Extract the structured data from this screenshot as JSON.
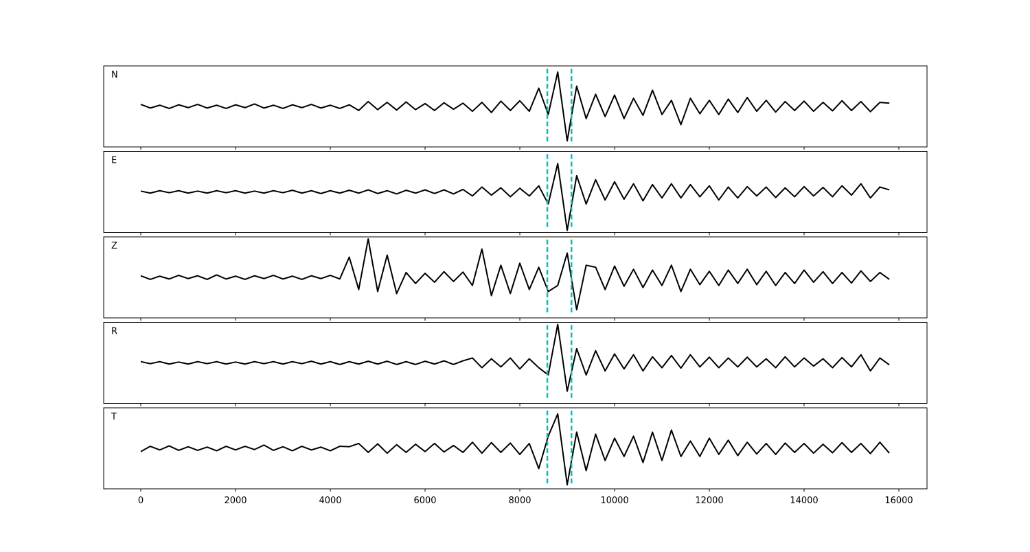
{
  "chart_data": [
    {
      "type": "line",
      "label": "N",
      "color": "#000000",
      "xlim": [
        -783,
        16594
      ],
      "ylim": [
        -1,
        1
      ],
      "xticks": [
        0,
        2000,
        4000,
        6000,
        8000,
        10000,
        12000,
        14000,
        16000
      ],
      "vlines": [
        8580,
        9090
      ],
      "vline_color": "#00bfbf",
      "x": [
        0,
        200,
        400,
        600,
        800,
        1000,
        1200,
        1400,
        1600,
        1800,
        2000,
        2200,
        2400,
        2600,
        2800,
        3000,
        3200,
        3400,
        3600,
        3800,
        4000,
        4200,
        4400,
        4600,
        4800,
        5000,
        5200,
        5400,
        5600,
        5800,
        6000,
        6200,
        6400,
        6600,
        6800,
        7000,
        7200,
        7400,
        7600,
        7800,
        8000,
        8200,
        8400,
        8600,
        8800,
        9000,
        9200,
        9400,
        9600,
        9800,
        10000,
        10200,
        10400,
        10600,
        10800,
        11000,
        11200,
        11400,
        11600,
        11800,
        12000,
        12200,
        12400,
        12600,
        12800,
        13000,
        13200,
        13400,
        13600,
        13800,
        14000,
        14200,
        14400,
        14600,
        14800,
        15000,
        15200,
        15400,
        15600,
        15800
      ],
      "values": [
        0.05,
        -0.04,
        0.03,
        -0.05,
        0.04,
        -0.03,
        0.05,
        -0.04,
        0.03,
        -0.05,
        0.04,
        -0.03,
        0.06,
        -0.04,
        0.03,
        -0.05,
        0.04,
        -0.03,
        0.05,
        -0.04,
        0.03,
        -0.05,
        0.04,
        -0.1,
        0.12,
        -0.08,
        0.1,
        -0.09,
        0.11,
        -0.08,
        0.07,
        -0.1,
        0.09,
        -0.07,
        0.08,
        -0.12,
        0.1,
        -0.15,
        0.13,
        -0.1,
        0.14,
        -0.12,
        0.45,
        -0.2,
        0.85,
        -0.85,
        0.5,
        -0.3,
        0.3,
        -0.25,
        0.28,
        -0.3,
        0.2,
        -0.22,
        0.4,
        -0.2,
        0.15,
        -0.45,
        0.2,
        -0.18,
        0.15,
        -0.2,
        0.18,
        -0.15,
        0.22,
        -0.12,
        0.15,
        -0.14,
        0.12,
        -0.1,
        0.13,
        -0.12,
        0.1,
        -0.11,
        0.14,
        -0.1,
        0.12,
        -0.13,
        0.1,
        0.08
      ]
    },
    {
      "type": "line",
      "label": "E",
      "color": "#000000",
      "xlim": [
        -783,
        16594
      ],
      "ylim": [
        -1,
        1
      ],
      "xticks": [
        0,
        2000,
        4000,
        6000,
        8000,
        10000,
        12000,
        14000,
        16000
      ],
      "vlines": [
        8580,
        9090
      ],
      "vline_color": "#00bfbf",
      "x": [
        0,
        200,
        400,
        600,
        800,
        1000,
        1200,
        1400,
        1600,
        1800,
        2000,
        2200,
        2400,
        2600,
        2800,
        3000,
        3200,
        3400,
        3600,
        3800,
        4000,
        4200,
        4400,
        4600,
        4800,
        5000,
        5200,
        5400,
        5600,
        5800,
        6000,
        6200,
        6400,
        6600,
        6800,
        7000,
        7200,
        7400,
        7600,
        7800,
        8000,
        8200,
        8400,
        8600,
        8800,
        9000,
        9200,
        9400,
        9600,
        9800,
        10000,
        10200,
        10400,
        10600,
        10800,
        11000,
        11200,
        11400,
        11600,
        11800,
        12000,
        12200,
        12400,
        12600,
        12800,
        13000,
        13200,
        13400,
        13600,
        13800,
        14000,
        14200,
        14400,
        14600,
        14800,
        15000,
        15200,
        15400,
        15600,
        15800
      ],
      "values": [
        0.02,
        -0.03,
        0.03,
        -0.02,
        0.03,
        -0.03,
        0.02,
        -0.03,
        0.03,
        -0.02,
        0.03,
        -0.03,
        0.02,
        -0.03,
        0.03,
        -0.02,
        0.04,
        -0.03,
        0.03,
        -0.04,
        0.03,
        -0.03,
        0.04,
        -0.03,
        0.05,
        -0.04,
        0.03,
        -0.05,
        0.04,
        -0.03,
        0.05,
        -0.04,
        0.05,
        -0.05,
        0.06,
        -0.1,
        0.12,
        -0.08,
        0.1,
        -0.12,
        0.09,
        -0.1,
        0.15,
        -0.3,
        0.7,
        -0.95,
        0.4,
        -0.3,
        0.3,
        -0.2,
        0.25,
        -0.18,
        0.2,
        -0.22,
        0.18,
        -0.15,
        0.2,
        -0.15,
        0.18,
        -0.12,
        0.15,
        -0.2,
        0.12,
        -0.15,
        0.13,
        -0.1,
        0.12,
        -0.14,
        0.1,
        -0.12,
        0.13,
        -0.1,
        0.11,
        -0.12,
        0.15,
        -0.08,
        0.2,
        -0.15,
        0.12,
        0.05
      ]
    },
    {
      "type": "line",
      "label": "Z",
      "color": "#000000",
      "xlim": [
        -783,
        16594
      ],
      "ylim": [
        -1,
        1
      ],
      "xticks": [
        0,
        2000,
        4000,
        6000,
        8000,
        10000,
        12000,
        14000,
        16000
      ],
      "vlines": [
        8580,
        9090
      ],
      "vline_color": "#00bfbf",
      "x": [
        0,
        200,
        400,
        600,
        800,
        1000,
        1200,
        1400,
        1600,
        1800,
        2000,
        2200,
        2400,
        2600,
        2800,
        3000,
        3200,
        3400,
        3600,
        3800,
        4000,
        4200,
        4400,
        4600,
        4800,
        5000,
        5200,
        5400,
        5600,
        5800,
        6000,
        6200,
        6400,
        6600,
        6800,
        7000,
        7200,
        7400,
        7600,
        7800,
        8000,
        8200,
        8400,
        8600,
        8800,
        9000,
        9200,
        9400,
        9600,
        9800,
        10000,
        10200,
        10400,
        10600,
        10800,
        11000,
        11200,
        11400,
        11600,
        11800,
        12000,
        12200,
        12400,
        12600,
        12800,
        13000,
        13200,
        13400,
        13600,
        13800,
        14000,
        14200,
        14400,
        14600,
        14800,
        15000,
        15200,
        15400,
        15600,
        15800
      ],
      "values": [
        0.04,
        -0.05,
        0.03,
        -0.04,
        0.05,
        -0.03,
        0.04,
        -0.05,
        0.06,
        -0.04,
        0.03,
        -0.05,
        0.04,
        -0.03,
        0.05,
        -0.04,
        0.03,
        -0.05,
        0.04,
        -0.03,
        0.05,
        -0.04,
        0.5,
        -0.3,
        0.95,
        -0.35,
        0.55,
        -0.4,
        0.12,
        -0.15,
        0.1,
        -0.12,
        0.14,
        -0.1,
        0.13,
        -0.2,
        0.7,
        -0.45,
        0.3,
        -0.4,
        0.35,
        -0.3,
        0.25,
        -0.35,
        -0.2,
        0.6,
        -0.8,
        0.3,
        0.25,
        -0.3,
        0.28,
        -0.22,
        0.2,
        -0.25,
        0.18,
        -0.2,
        0.3,
        -0.35,
        0.2,
        -0.18,
        0.15,
        -0.2,
        0.18,
        -0.15,
        0.2,
        -0.18,
        0.15,
        -0.2,
        0.12,
        -0.15,
        0.18,
        -0.12,
        0.14,
        -0.15,
        0.12,
        -0.14,
        0.16,
        -0.1,
        0.12,
        -0.05
      ]
    },
    {
      "type": "line",
      "label": "R",
      "color": "#000000",
      "xlim": [
        -783,
        16594
      ],
      "ylim": [
        -1,
        1
      ],
      "xticks": [
        0,
        2000,
        4000,
        6000,
        8000,
        10000,
        12000,
        14000,
        16000
      ],
      "vlines": [
        8580,
        9090
      ],
      "vline_color": "#00bfbf",
      "x": [
        0,
        200,
        400,
        600,
        800,
        1000,
        1200,
        1400,
        1600,
        1800,
        2000,
        2200,
        2400,
        2600,
        2800,
        3000,
        3200,
        3400,
        3600,
        3800,
        4000,
        4200,
        4400,
        4600,
        4800,
        5000,
        5200,
        5400,
        5600,
        5800,
        6000,
        6200,
        6400,
        6600,
        6800,
        7000,
        7200,
        7400,
        7600,
        7800,
        8000,
        8200,
        8400,
        8600,
        8800,
        9000,
        9200,
        9400,
        9600,
        9800,
        10000,
        10200,
        10400,
        10600,
        10800,
        11000,
        11200,
        11400,
        11600,
        11800,
        12000,
        12200,
        12400,
        12600,
        12800,
        13000,
        13200,
        13400,
        13600,
        13800,
        14000,
        14200,
        14400,
        14600,
        14800,
        15000,
        15200,
        15400,
        15600,
        15800
      ],
      "values": [
        0.03,
        -0.02,
        0.03,
        -0.03,
        0.02,
        -0.03,
        0.03,
        -0.02,
        0.03,
        -0.03,
        0.02,
        -0.03,
        0.03,
        -0.02,
        0.03,
        -0.03,
        0.03,
        -0.02,
        0.04,
        -0.03,
        0.03,
        -0.04,
        0.03,
        -0.03,
        0.04,
        -0.03,
        0.04,
        -0.04,
        0.03,
        -0.04,
        0.04,
        -0.03,
        0.05,
        -0.04,
        0.05,
        0.12,
        -0.12,
        0.1,
        -0.1,
        0.12,
        -0.15,
        0.1,
        -0.12,
        -0.3,
        0.95,
        -0.7,
        0.35,
        -0.3,
        0.3,
        -0.2,
        0.22,
        -0.15,
        0.2,
        -0.2,
        0.15,
        -0.12,
        0.18,
        -0.13,
        0.2,
        -0.1,
        0.14,
        -0.12,
        0.12,
        -0.1,
        0.14,
        -0.1,
        0.1,
        -0.12,
        0.15,
        -0.1,
        0.12,
        -0.08,
        0.1,
        -0.12,
        0.13,
        -0.1,
        0.2,
        -0.2,
        0.12,
        -0.05
      ]
    },
    {
      "type": "line",
      "label": "T",
      "color": "#000000",
      "xlim": [
        -783,
        16594
      ],
      "ylim": [
        -1,
        1
      ],
      "xticks": [
        0,
        2000,
        4000,
        6000,
        8000,
        10000,
        12000,
        14000,
        16000
      ],
      "vlines": [
        8580,
        9090
      ],
      "vline_color": "#00bfbf",
      "x": [
        0,
        200,
        400,
        600,
        800,
        1000,
        1200,
        1400,
        1600,
        1800,
        2000,
        2200,
        2400,
        2600,
        2800,
        3000,
        3200,
        3400,
        3600,
        3800,
        4000,
        4200,
        4400,
        4600,
        4800,
        5000,
        5200,
        5400,
        5600,
        5800,
        6000,
        6200,
        6400,
        6600,
        6800,
        7000,
        7200,
        7400,
        7600,
        7800,
        8000,
        8200,
        8400,
        8600,
        8800,
        9000,
        9200,
        9400,
        9600,
        9800,
        10000,
        10200,
        10400,
        10600,
        10800,
        11000,
        11200,
        11400,
        11600,
        11800,
        12000,
        12200,
        12400,
        12600,
        12800,
        13000,
        13200,
        13400,
        13600,
        13800,
        14000,
        14200,
        14400,
        14600,
        14800,
        15000,
        15200,
        15400,
        15600,
        15800
      ],
      "values": [
        -0.08,
        0.05,
        -0.04,
        0.06,
        -0.05,
        0.04,
        -0.05,
        0.03,
        -0.06,
        0.05,
        -0.04,
        0.05,
        -0.03,
        0.08,
        -0.05,
        0.04,
        -0.06,
        0.05,
        -0.04,
        0.03,
        -0.06,
        0.05,
        0.04,
        0.12,
        -0.1,
        0.11,
        -0.12,
        0.09,
        -0.1,
        0.1,
        -0.08,
        0.12,
        -0.09,
        0.07,
        -0.1,
        0.15,
        -0.12,
        0.14,
        -0.1,
        0.13,
        -0.15,
        0.12,
        -0.5,
        0.3,
        0.85,
        -0.9,
        0.4,
        -0.55,
        0.35,
        -0.3,
        0.25,
        -0.2,
        0.3,
        -0.35,
        0.4,
        -0.3,
        0.45,
        -0.2,
        0.18,
        -0.2,
        0.25,
        -0.15,
        0.2,
        -0.18,
        0.15,
        -0.14,
        0.12,
        -0.15,
        0.13,
        -0.1,
        0.12,
        -0.12,
        0.1,
        -0.11,
        0.14,
        -0.1,
        0.12,
        -0.13,
        0.15,
        -0.12
      ]
    }
  ]
}
